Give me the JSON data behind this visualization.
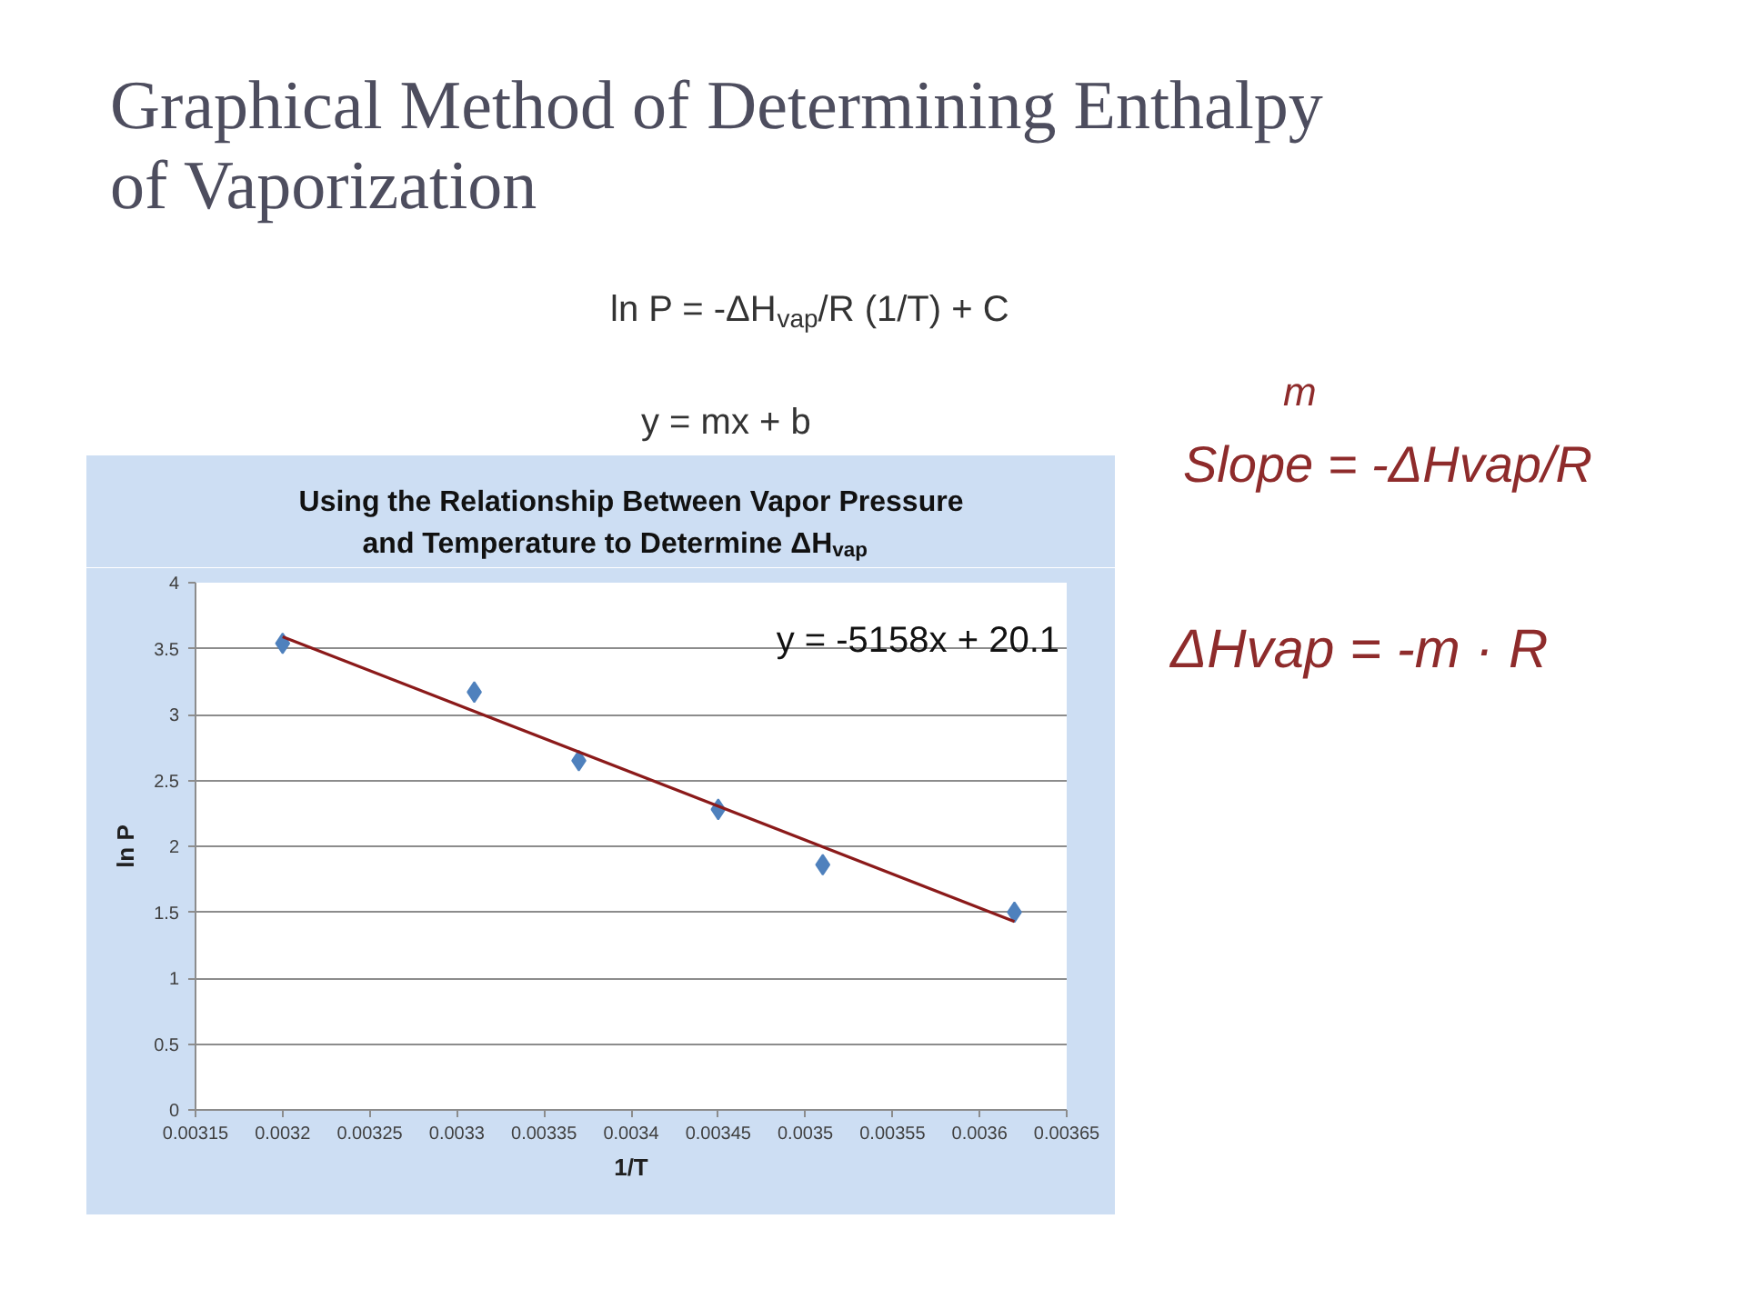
{
  "chart_data": {
    "type": "scatter",
    "title": "Graphical Method of Determining Enthalpy of Vaporization",
    "subtitle": "Using the Relationship Between Vapor Pressure and Temperature to Determine ΔH$_{vap}$",
    "xlabel": "1/T",
    "ylabel": "ln P",
    "annotations": [
      "y = -5158x + 20.1",
      "ln P = -ΔH$_{vap}$/R (1/T) + C",
      "y = mx + b",
      "m",
      "Slope = -ΔHvap/R",
      "ΔHvap = -m · R"
    ],
    "series": [
      {
        "color": "#4f81bd",
        "x": [
          0.0032,
          0.00331,
          0.00337,
          0.00345,
          0.00351,
          0.00362
        ],
        "values": [
          3.54,
          3.17,
          2.65,
          2.28,
          1.86,
          1.5
        ]
      },
      {
        "type": "line",
        "color": "#8b1a1a",
        "marker": "none",
        "x": [
          0.0032,
          0.00362
        ],
        "values": [
          3.59,
          1.43
        ]
      }
    ],
    "xlim": [
      0.00315,
      0.00365
    ],
    "ylim": [
      0,
      4
    ],
    "xticks": [
      0.00315,
      0.0032,
      0.00325,
      0.0033,
      0.00335,
      0.0034,
      0.00345,
      0.0035,
      0.00355,
      0.0036,
      0.00365
    ],
    "yticks": [
      0,
      0.5,
      1,
      1.5,
      2,
      2.5,
      3,
      3.5,
      4
    ],
    "grid": "y",
    "marker": "diamond"
  }
}
